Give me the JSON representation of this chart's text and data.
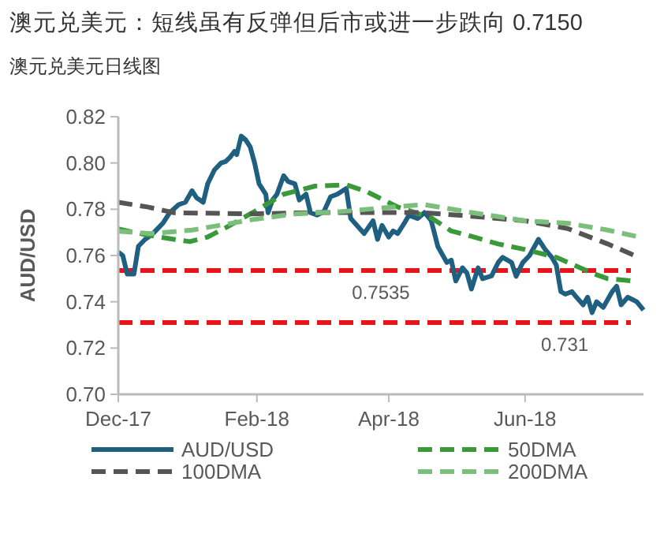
{
  "chart_data": {
    "type": "line",
    "title": "澳元兑美元：短线虽有反弹但后市或进一步跌向 0.7150",
    "subtitle": "澳元兑美元日线图",
    "ylabel": "AUD/USD",
    "xlim": [
      "2017-12-01",
      "2018-07-24"
    ],
    "xticks": [
      {
        "value": "2017-12-01",
        "label": "Dec-17"
      },
      {
        "value": "2018-02-01",
        "label": "Feb-18"
      },
      {
        "value": "2018-04-01",
        "label": "Apr-18"
      },
      {
        "value": "2018-06-01",
        "label": "Jun-18"
      }
    ],
    "ylim": [
      0.7,
      0.82
    ],
    "yticks": [
      {
        "value": 0.7,
        "label": "0.70"
      },
      0.72,
      0.74,
      0.76,
      0.78,
      {
        "value": 0.8,
        "label": "0.80"
      },
      0.82
    ],
    "grid": false,
    "legend": "bottom",
    "marker": "none",
    "ref_lines": [
      {
        "axis": "y",
        "value": 0.7535,
        "label": "0.7535",
        "color": "#e8141b",
        "line_style": "dashed"
      },
      {
        "axis": "y",
        "value": 0.731,
        "label": "0.731",
        "color": "#e8141b",
        "line_style": "dashed"
      }
    ],
    "series": [
      {
        "name": "AUD/USD",
        "color": "#1f5f80",
        "line_style": "solid",
        "x": [
          "2017-12-01",
          "2017-12-03",
          "2017-12-05",
          "2017-12-08",
          "2017-12-10",
          "2017-12-13",
          "2017-12-16",
          "2017-12-21",
          "2017-12-24",
          "2017-12-28",
          "2017-12-31",
          "2018-01-03",
          "2018-01-05",
          "2018-01-08",
          "2018-01-10",
          "2018-01-13",
          "2018-01-16",
          "2018-01-18",
          "2018-01-20",
          "2018-01-22",
          "2018-01-23",
          "2018-01-25",
          "2018-01-27",
          "2018-01-29",
          "2018-01-31",
          "2018-02-02",
          "2018-02-05",
          "2018-02-06",
          "2018-02-08",
          "2018-02-10",
          "2018-02-13",
          "2018-02-15",
          "2018-02-18",
          "2018-02-20",
          "2018-02-23",
          "2018-02-25",
          "2018-02-28",
          "2018-03-03",
          "2018-03-06",
          "2018-03-09",
          "2018-03-13",
          "2018-03-15",
          "2018-03-19",
          "2018-03-21",
          "2018-03-25",
          "2018-03-27",
          "2018-03-29",
          "2018-04-01",
          "2018-04-03",
          "2018-04-05",
          "2018-04-08",
          "2018-04-10",
          "2018-04-14",
          "2018-04-17",
          "2018-04-20",
          "2018-04-23",
          "2018-04-27",
          "2018-04-29",
          "2018-05-01",
          "2018-05-04",
          "2018-05-06",
          "2018-05-08",
          "2018-05-11",
          "2018-05-13",
          "2018-05-17",
          "2018-05-20",
          "2018-05-22",
          "2018-05-26",
          "2018-05-28",
          "2018-05-31",
          "2018-06-03",
          "2018-06-07",
          "2018-06-10",
          "2018-06-13",
          "2018-06-15",
          "2018-06-17",
          "2018-06-19",
          "2018-06-22",
          "2018-06-24",
          "2018-06-27",
          "2018-06-29",
          "2018-07-01",
          "2018-07-03",
          "2018-07-06",
          "2018-07-10",
          "2018-07-12",
          "2018-07-14",
          "2018-07-17",
          "2018-07-19",
          "2018-07-21",
          "2018-07-24"
        ],
        "values": [
          0.7615,
          0.76,
          0.752,
          0.752,
          0.764,
          0.767,
          0.769,
          0.774,
          0.7785,
          0.782,
          0.783,
          0.788,
          0.785,
          0.783,
          0.791,
          0.797,
          0.8,
          0.8006,
          0.8025,
          0.805,
          0.8036,
          0.8116,
          0.81,
          0.807,
          0.8,
          0.791,
          0.7865,
          0.7785,
          0.784,
          0.7865,
          0.7945,
          0.792,
          0.791,
          0.784,
          0.7865,
          0.7785,
          0.7775,
          0.779,
          0.7854,
          0.7865,
          0.789,
          0.776,
          0.7717,
          0.7695,
          0.775,
          0.767,
          0.773,
          0.768,
          0.7706,
          0.7695,
          0.774,
          0.7774,
          0.776,
          0.7786,
          0.7751,
          0.7638,
          0.757,
          0.758,
          0.749,
          0.7547,
          0.7524,
          0.7455,
          0.7547,
          0.75,
          0.7512,
          0.757,
          0.7592,
          0.757,
          0.751,
          0.757,
          0.76,
          0.767,
          0.7626,
          0.7592,
          0.7558,
          0.7444,
          0.7433,
          0.7444,
          0.742,
          0.7387,
          0.742,
          0.7353,
          0.74,
          0.7376,
          0.7444,
          0.7467,
          0.7387,
          0.742,
          0.741,
          0.74,
          0.7364
        ]
      },
      {
        "name": "50DMA",
        "color": "#3a9a3a",
        "line_style": "dashed",
        "x": [
          "2017-12-01",
          "2017-12-13",
          "2017-12-26",
          "2018-01-02",
          "2018-01-10",
          "2018-01-18",
          "2018-01-30",
          "2018-02-13",
          "2018-02-27",
          "2018-03-13",
          "2018-03-22",
          "2018-04-05",
          "2018-04-20",
          "2018-04-29",
          "2018-05-08",
          "2018-05-20",
          "2018-06-01",
          "2018-06-15",
          "2018-07-01",
          "2018-07-08",
          "2018-07-19"
        ],
        "values": [
          0.7715,
          0.769,
          0.767,
          0.766,
          0.768,
          0.772,
          0.7785,
          0.7865,
          0.79,
          0.7906,
          0.7877,
          0.781,
          0.7763,
          0.7706,
          0.7683,
          0.765,
          0.7626,
          0.7592,
          0.7524,
          0.75,
          0.749
        ]
      },
      {
        "name": "100DMA",
        "color": "#555555",
        "line_style": "dashed",
        "x": [
          "2017-12-01",
          "2017-12-14",
          "2017-12-26",
          "2018-01-30",
          "2018-02-27",
          "2018-04-15",
          "2018-05-08",
          "2018-06-01",
          "2018-06-20",
          "2018-07-08",
          "2018-07-22"
        ],
        "values": [
          0.783,
          0.781,
          0.7785,
          0.778,
          0.7786,
          0.7786,
          0.777,
          0.775,
          0.7717,
          0.765,
          0.7592
        ]
      },
      {
        "name": "200DMA",
        "color": "#7cbf7c",
        "line_style": "dashed",
        "x": [
          "2017-12-01",
          "2017-12-16",
          "2018-01-03",
          "2018-01-30",
          "2018-02-18",
          "2018-03-11",
          "2018-04-03",
          "2018-04-17",
          "2018-05-08",
          "2018-06-01",
          "2018-06-20",
          "2018-07-08",
          "2018-07-22"
        ],
        "values": [
          0.7705,
          0.7695,
          0.771,
          0.7755,
          0.778,
          0.779,
          0.781,
          0.782,
          0.7786,
          0.775,
          0.774,
          0.771,
          0.768
        ]
      }
    ]
  }
}
